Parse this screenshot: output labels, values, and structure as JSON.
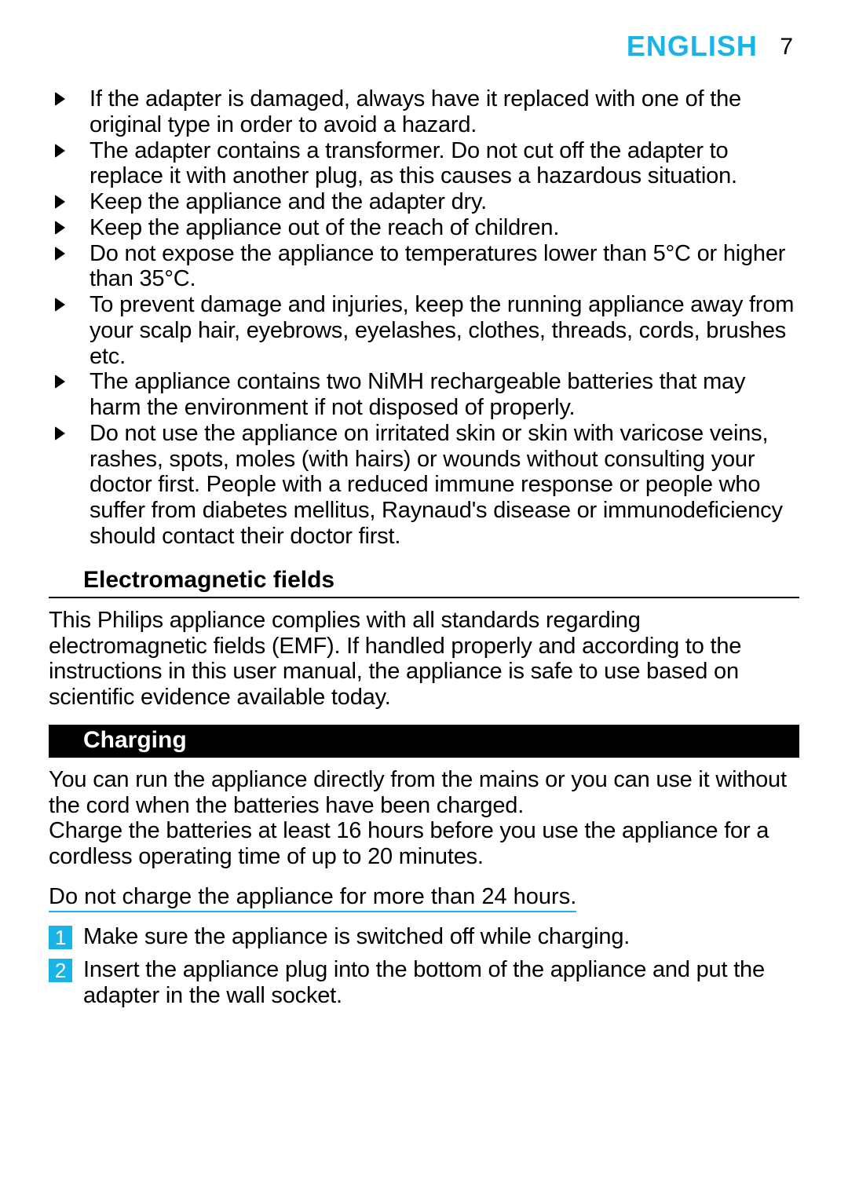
{
  "colors": {
    "accent_teal": "#18b4e8",
    "text": "#000000",
    "section_bar_bg": "#000000",
    "section_bar_fg": "#ffffff",
    "page_bg": "#ffffff"
  },
  "typography": {
    "body_fontsize_pt": 22,
    "heading_fontsize_pt": 23,
    "header_lang_fontsize_pt": 27
  },
  "header": {
    "language": "ENGLISH",
    "page_number": "7"
  },
  "bullets": [
    "If the adapter is damaged, always have it replaced with one of the original type in order to avoid a hazard.",
    "The adapter contains a transformer. Do not cut off the adapter to replace it with another plug, as this causes a hazardous situation.",
    "Keep the appliance and the adapter dry.",
    "Keep the appliance out of the reach of children.",
    "Do not expose the appliance to temperatures lower than 5°C or higher than 35°C.",
    "To prevent damage and injuries, keep the running appliance away from your scalp hair, eyebrows, eyelashes, clothes, threads, cords, brushes etc.",
    "The appliance contains two NiMH rechargeable batteries that may harm the environment if not disposed of properly.",
    "Do not use the appliance on irritated skin or skin with varicose veins, rashes, spots, moles (with hairs) or wounds without consulting your doctor first. People with a reduced immune response or people who suffer from diabetes mellitus, Raynaud's disease or immunodeficiency should contact their doctor first."
  ],
  "emf": {
    "heading": "Electromagnetic fields",
    "body": "This Philips appliance complies with all standards regarding electromagnetic fields (EMF). If handled properly and according to the instructions in this user manual, the appliance is safe to use based on scientific evidence available today."
  },
  "charging": {
    "heading": "Charging",
    "body": "You can run the appliance directly from the mains or you can use it without the cord when the batteries have been charged.\nCharge the batteries at least 16 hours before you use the appliance for a cordless operating time of up to 20 minutes.",
    "note": "Do not charge the appliance for more than 24 hours.",
    "steps": [
      {
        "num": "1",
        "text": "Make sure the appliance is switched off while charging."
      },
      {
        "num": "2",
        "text": "Insert the appliance plug into the bottom of the appliance and put the adapter in the wall socket."
      }
    ]
  }
}
